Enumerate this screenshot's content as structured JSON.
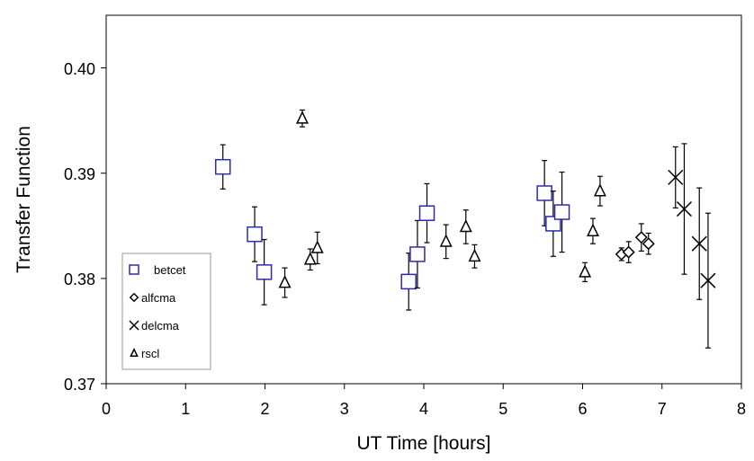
{
  "chart_data": {
    "type": "scatter",
    "title": "",
    "xlabel": "UT Time [hours]",
    "ylabel": "Transfer Function",
    "xlim": [
      0,
      8
    ],
    "ylim": [
      0.37,
      0.405
    ],
    "xticks": [
      "0",
      "1",
      "2",
      "3",
      "4",
      "5",
      "6",
      "7",
      "8"
    ],
    "yticks": [
      "0.37",
      "0.38",
      "0.39",
      "0.40"
    ],
    "ytick_values": [
      0.37,
      0.38,
      0.39,
      0.4
    ],
    "grid": false,
    "legend_position": "bottom-left",
    "series": [
      {
        "name": "betcet",
        "marker": "square",
        "color": "#2b2bb0",
        "points": [
          {
            "x": 1.47,
            "y": 0.3906,
            "err": 0.0021
          },
          {
            "x": 1.87,
            "y": 0.3842,
            "err": 0.0026
          },
          {
            "x": 1.99,
            "y": 0.3806,
            "err": 0.0031
          },
          {
            "x": 3.81,
            "y": 0.3797,
            "err": 0.0027
          },
          {
            "x": 3.92,
            "y": 0.3823,
            "err": 0.0032
          },
          {
            "x": 4.04,
            "y": 0.3862,
            "err": 0.0028
          },
          {
            "x": 5.52,
            "y": 0.3881,
            "err": 0.0031
          },
          {
            "x": 5.63,
            "y": 0.3852,
            "err": 0.0031
          },
          {
            "x": 5.74,
            "y": 0.3863,
            "err": 0.0038
          }
        ]
      },
      {
        "name": "alfcma",
        "marker": "diamond",
        "color": "#000000",
        "points": [
          {
            "x": 6.49,
            "y": 0.3823,
            "err": 0.0006
          },
          {
            "x": 6.58,
            "y": 0.3825,
            "err": 0.001
          },
          {
            "x": 6.74,
            "y": 0.3839,
            "err": 0.0013
          },
          {
            "x": 6.83,
            "y": 0.3833,
            "err": 0.001
          }
        ]
      },
      {
        "name": "delcma",
        "marker": "x",
        "color": "#000000",
        "points": [
          {
            "x": 7.17,
            "y": 0.3896,
            "err": 0.0029
          },
          {
            "x": 7.28,
            "y": 0.3866,
            "err": 0.0062
          },
          {
            "x": 7.47,
            "y": 0.3833,
            "err": 0.0053
          },
          {
            "x": 7.58,
            "y": 0.3798,
            "err": 0.0064
          }
        ]
      },
      {
        "name": "rscl",
        "marker": "triangle",
        "color": "#000000",
        "points": [
          {
            "x": 2.25,
            "y": 0.3796,
            "err": 0.0014
          },
          {
            "x": 2.47,
            "y": 0.3952,
            "err": 0.0008
          },
          {
            "x": 2.57,
            "y": 0.3818,
            "err": 0.001
          },
          {
            "x": 2.66,
            "y": 0.3829,
            "err": 0.0015
          },
          {
            "x": 4.28,
            "y": 0.3835,
            "err": 0.0016
          },
          {
            "x": 4.53,
            "y": 0.3849,
            "err": 0.0016
          },
          {
            "x": 4.64,
            "y": 0.3821,
            "err": 0.0011
          },
          {
            "x": 6.03,
            "y": 0.3806,
            "err": 0.0009
          },
          {
            "x": 6.13,
            "y": 0.3845,
            "err": 0.0012
          },
          {
            "x": 6.22,
            "y": 0.3883,
            "err": 0.0014
          }
        ]
      }
    ]
  }
}
